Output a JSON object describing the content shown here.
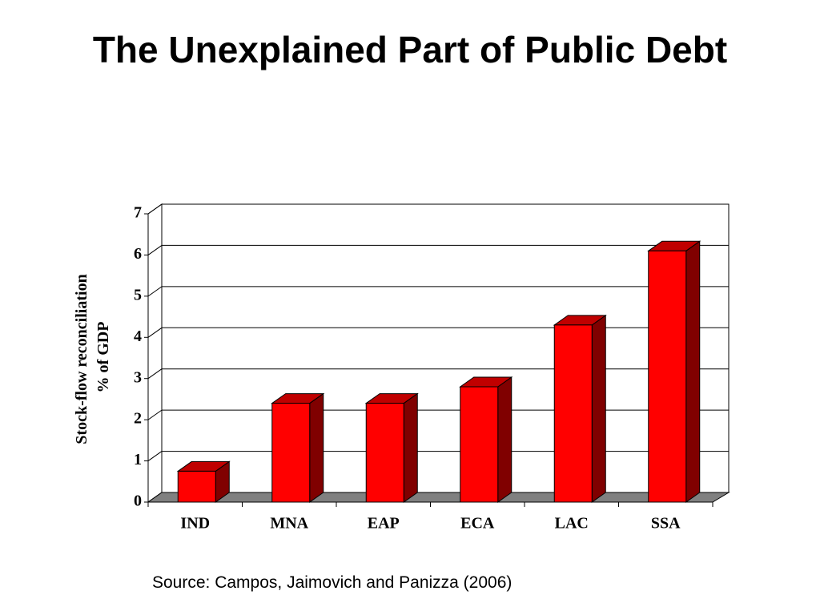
{
  "chart_data": {
    "type": "bar3d",
    "title": "The Unexplained Part of Public Debt",
    "ylabel": [
      "Stock-flow reconciliation",
      "% of GDP"
    ],
    "categories": [
      "IND",
      "MNA",
      "EAP",
      "ECA",
      "LAC",
      "SSA"
    ],
    "values": [
      0.75,
      2.4,
      2.4,
      2.8,
      4.3,
      6.1
    ],
    "color": "#ff0000",
    "ylim": [
      0,
      7
    ],
    "yticks": [
      0,
      1,
      2,
      3,
      4,
      5,
      6,
      7
    ],
    "grid": true,
    "source": "Source: Campos, Jaimovich and Panizza (2006)"
  }
}
